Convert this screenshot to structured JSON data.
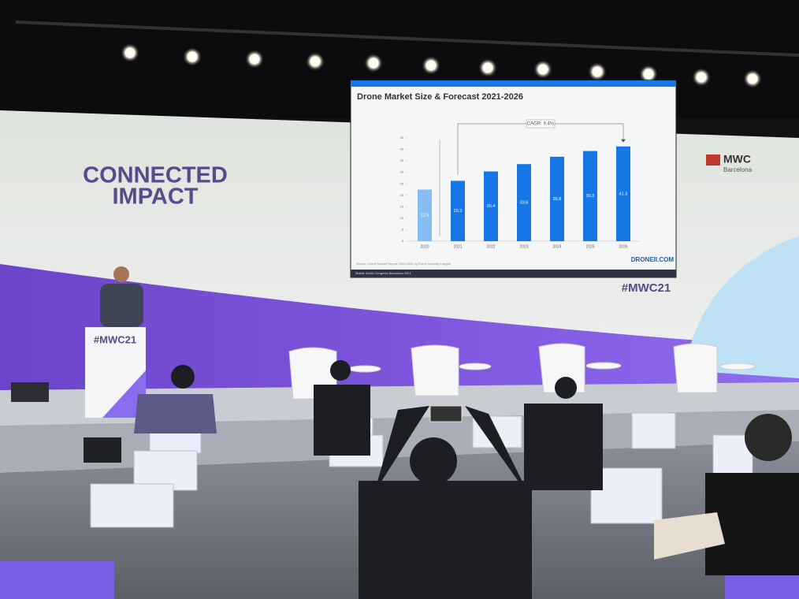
{
  "stage": {
    "backdrop_title_1": "CONNECTED",
    "backdrop_title_2": "IMPACT",
    "hashtag": "#MWC21",
    "podium_hashtag": "#MWC21",
    "sponsor_logo": "MWC",
    "sponsor_city": "Barcelona"
  },
  "slide": {
    "brand": "DRONEII.COM",
    "footer": "Mobile World Congress Barcelona 2021",
    "source": "Source: Drone Market Report 2021-2026 by Drone Industry Insights"
  },
  "chart_data": {
    "type": "bar",
    "title": "Drone Market Size & Forecast 2021-2026",
    "annotation": "CAGR: 9.4%",
    "categories": [
      "2020",
      "2021",
      "2022",
      "2023",
      "2024",
      "2025",
      "2026"
    ],
    "values": [
      22.5,
      26.3,
      30.4,
      33.6,
      36.8,
      39.3,
      41.3
    ],
    "colors": [
      "#86bdf2",
      "#1877e6",
      "#1877e6",
      "#1877e6",
      "#1877e6",
      "#1877e6",
      "#1877e6"
    ],
    "ylim": [
      0,
      45
    ],
    "yticks": [
      0,
      5,
      10,
      15,
      20,
      25,
      30,
      35,
      40,
      45
    ],
    "grid": false
  }
}
